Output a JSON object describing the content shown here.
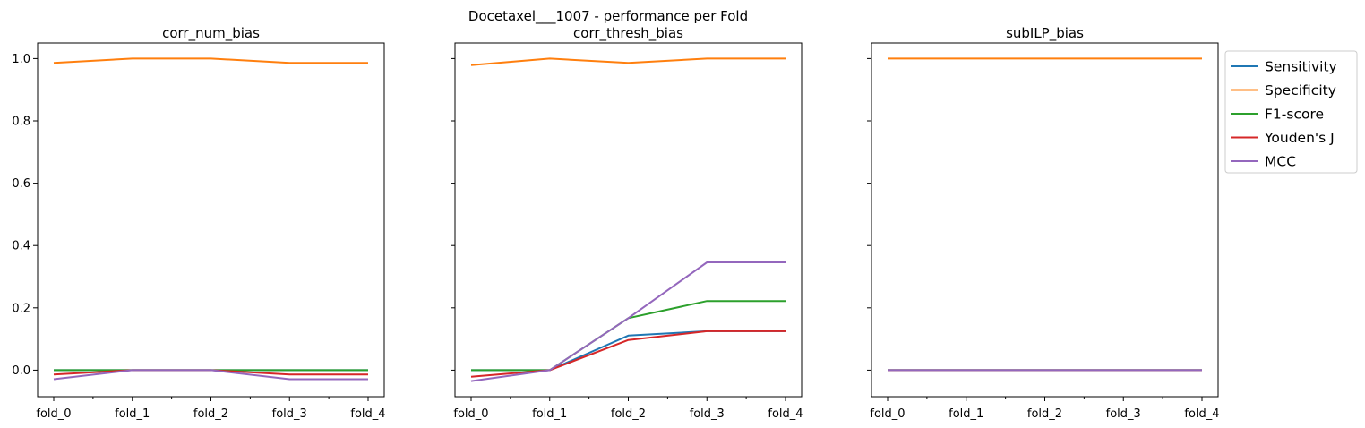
{
  "figure": {
    "suptitle": "Docetaxel___1007 - performance per Fold"
  },
  "colors": {
    "Sensitivity": "#1f77b4",
    "Specificity": "#ff7f0e",
    "F1-score": "#2ca02c",
    "Youden's J": "#d62728",
    "MCC": "#9467bd"
  },
  "legend": {
    "placement": "outside-right",
    "entries": [
      "Sensitivity",
      "Specificity",
      "F1-score",
      "Youden's J",
      "MCC"
    ]
  },
  "chart_data": [
    {
      "type": "line",
      "title": "corr_num_bias",
      "categories": [
        "fold_0",
        "fold_1",
        "fold_2",
        "fold_3",
        "fold_4"
      ],
      "ylim": [
        -0.085,
        1.05
      ],
      "yticks": [
        0.0,
        0.2,
        0.4,
        0.6,
        0.8,
        1.0
      ],
      "series": [
        {
          "name": "Sensitivity",
          "values": [
            0.0,
            0.0,
            0.0,
            0.0,
            0.0
          ]
        },
        {
          "name": "Specificity",
          "values": [
            0.986,
            1.0,
            1.0,
            0.986,
            0.986
          ]
        },
        {
          "name": "F1-score",
          "values": [
            0.0,
            0.0,
            0.0,
            0.0,
            0.0
          ]
        },
        {
          "name": "Youden's J",
          "values": [
            -0.014,
            0.0,
            0.0,
            -0.014,
            -0.014
          ]
        },
        {
          "name": "MCC",
          "values": [
            -0.029,
            0.0,
            0.0,
            -0.029,
            -0.029
          ]
        }
      ]
    },
    {
      "type": "line",
      "title": "corr_thresh_bias",
      "categories": [
        "fold_0",
        "fold_1",
        "fold_2",
        "fold_3",
        "fold_4"
      ],
      "ylim": [
        -0.085,
        1.05
      ],
      "yticks": [
        0.0,
        0.2,
        0.4,
        0.6,
        0.8,
        1.0
      ],
      "series": [
        {
          "name": "Sensitivity",
          "values": [
            0.0,
            0.0,
            0.111,
            0.125,
            0.125
          ]
        },
        {
          "name": "Specificity",
          "values": [
            0.979,
            1.0,
            0.986,
            1.0,
            1.0
          ]
        },
        {
          "name": "F1-score",
          "values": [
            0.0,
            0.0,
            0.167,
            0.222,
            0.222
          ]
        },
        {
          "name": "Youden's J",
          "values": [
            -0.021,
            0.0,
            0.097,
            0.125,
            0.125
          ]
        },
        {
          "name": "MCC",
          "values": [
            -0.035,
            0.0,
            0.167,
            0.346,
            0.346
          ]
        }
      ]
    },
    {
      "type": "line",
      "title": "subILP_bias",
      "categories": [
        "fold_0",
        "fold_1",
        "fold_2",
        "fold_3",
        "fold_4"
      ],
      "ylim": [
        -0.085,
        1.05
      ],
      "yticks": [
        0.0,
        0.2,
        0.4,
        0.6,
        0.8,
        1.0
      ],
      "series": [
        {
          "name": "Sensitivity",
          "values": [
            0.0,
            0.0,
            0.0,
            0.0,
            0.0
          ]
        },
        {
          "name": "Specificity",
          "values": [
            1.0,
            1.0,
            1.0,
            1.0,
            1.0
          ]
        },
        {
          "name": "F1-score",
          "values": [
            0.0,
            0.0,
            0.0,
            0.0,
            0.0
          ]
        },
        {
          "name": "Youden's J",
          "values": [
            0.0,
            0.0,
            0.0,
            0.0,
            0.0
          ]
        },
        {
          "name": "MCC",
          "values": [
            0.0,
            0.0,
            0.0,
            0.0,
            0.0
          ]
        }
      ]
    }
  ]
}
